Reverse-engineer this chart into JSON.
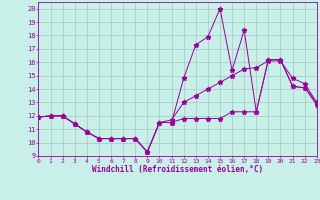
{
  "xlabel": "Windchill (Refroidissement éolien,°C)",
  "xlim": [
    0,
    23
  ],
  "ylim": [
    9,
    20.5
  ],
  "yticks": [
    9,
    10,
    11,
    12,
    13,
    14,
    15,
    16,
    17,
    18,
    19,
    20
  ],
  "xticks": [
    0,
    1,
    2,
    3,
    4,
    5,
    6,
    7,
    8,
    9,
    10,
    11,
    12,
    13,
    14,
    15,
    16,
    17,
    18,
    19,
    20,
    21,
    22,
    23
  ],
  "bg_color": "#c8f0e8",
  "grid_color": "#a0c8c0",
  "line_color": "#990099",
  "line1_x": [
    0,
    1,
    2,
    3,
    4,
    5,
    6,
    7,
    8,
    9,
    10,
    11,
    12,
    13,
    14,
    15,
    16,
    17,
    18,
    19,
    20,
    21,
    22,
    23
  ],
  "line1_y": [
    11.9,
    12.0,
    12.0,
    11.4,
    10.8,
    10.3,
    10.3,
    10.3,
    10.3,
    9.3,
    11.5,
    11.5,
    14.8,
    17.3,
    17.9,
    20.0,
    15.4,
    18.4,
    12.3,
    16.2,
    16.2,
    14.2,
    14.1,
    12.8
  ],
  "line2_x": [
    0,
    1,
    2,
    3,
    4,
    5,
    6,
    7,
    8,
    9,
    10,
    11,
    12,
    13,
    14,
    15,
    16,
    17,
    18,
    19,
    20,
    21,
    22,
    23
  ],
  "line2_y": [
    11.9,
    12.0,
    12.0,
    11.4,
    10.8,
    10.3,
    10.3,
    10.3,
    10.3,
    9.3,
    11.5,
    11.5,
    11.8,
    11.8,
    11.8,
    11.8,
    12.3,
    12.3,
    12.3,
    16.2,
    16.2,
    14.2,
    14.1,
    13.0
  ],
  "line3_x": [
    0,
    1,
    2,
    3,
    4,
    5,
    6,
    7,
    8,
    9,
    10,
    11,
    12,
    13,
    14,
    15,
    16,
    17,
    18,
    19,
    20,
    21,
    22,
    23
  ],
  "line3_y": [
    11.9,
    12.0,
    12.0,
    11.4,
    10.8,
    10.3,
    10.3,
    10.3,
    10.3,
    9.3,
    11.5,
    11.7,
    13.0,
    13.5,
    14.0,
    14.5,
    15.0,
    15.5,
    15.6,
    16.1,
    16.1,
    14.8,
    14.4,
    13.0
  ],
  "marker": "*",
  "markersize": 3.5
}
